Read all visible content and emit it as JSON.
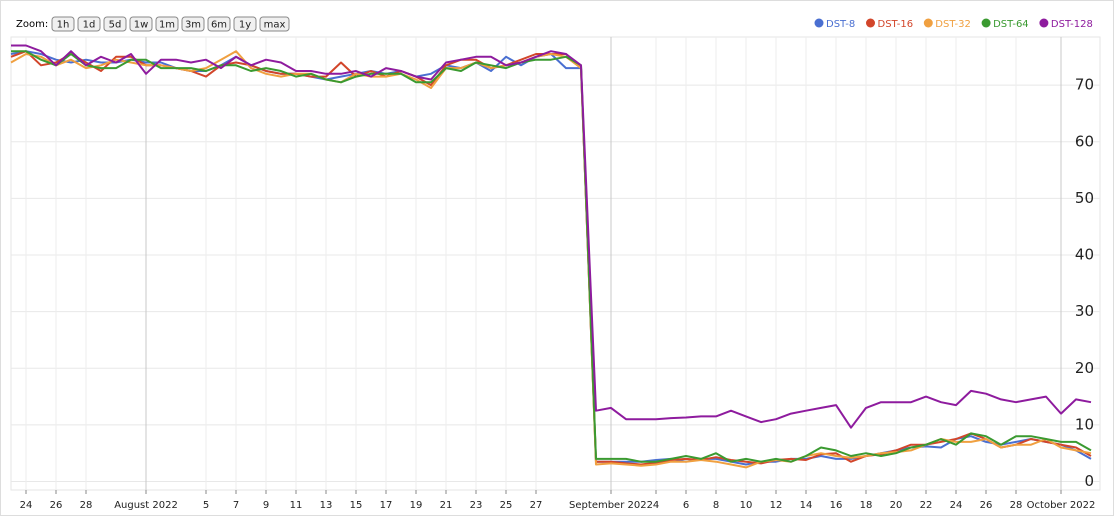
{
  "zoom": {
    "label": "Zoom:",
    "buttons": [
      "1h",
      "1d",
      "5d",
      "1w",
      "1m",
      "3m",
      "6m",
      "1y",
      "max"
    ]
  },
  "chart_data": {
    "type": "line",
    "categories": [
      null,
      "24",
      null,
      "26",
      null,
      "28",
      null,
      null,
      null,
      "August 2022",
      null,
      null,
      null,
      "5",
      null,
      "7",
      null,
      "9",
      null,
      "11",
      null,
      "13",
      null,
      "15",
      null,
      "17",
      null,
      "19",
      null,
      "21",
      null,
      "23",
      null,
      "25",
      null,
      "27",
      null,
      null,
      null,
      null,
      "September 2022",
      null,
      null,
      "4",
      null,
      "6",
      null,
      "8",
      null,
      "10",
      null,
      "12",
      null,
      "14",
      null,
      "16",
      null,
      "18",
      null,
      "20",
      null,
      "22",
      null,
      "24",
      null,
      "26",
      null,
      "28",
      null,
      null,
      "October 2022",
      null,
      null
    ],
    "series": [
      {
        "name": "DST-8",
        "color": "#4a6fd1",
        "values": [
          75.5,
          76,
          75.5,
          74.5,
          74,
          74.5,
          74,
          74,
          74.5,
          74,
          74,
          73,
          72.5,
          72.5,
          73.5,
          75,
          73.5,
          72.5,
          72,
          72,
          71.5,
          71,
          71.5,
          72,
          72.5,
          72,
          72.5,
          71.5,
          72,
          73.5,
          73,
          74,
          72.5,
          75,
          73.5,
          75,
          75.5,
          73,
          73,
          3.5,
          3.5,
          3.5,
          3.5,
          3.8,
          4,
          3.5,
          4,
          4,
          3.5,
          3,
          3.5,
          3.5,
          4,
          4,
          4.5,
          4,
          4,
          4.5,
          5,
          5.5,
          6,
          6.2,
          6,
          7.5,
          8,
          7,
          6.5,
          7,
          7.5,
          7,
          6.5,
          5.5,
          4
        ]
      },
      {
        "name": "DST-16",
        "color": "#d2452a",
        "values": [
          75,
          76,
          73.5,
          74,
          75.5,
          74,
          72.5,
          75,
          75,
          73.5,
          73.5,
          73,
          72.5,
          71.5,
          73.5,
          74,
          73.5,
          72.5,
          72,
          72,
          71.5,
          71.5,
          74,
          71.5,
          72.5,
          71.5,
          72.5,
          71.5,
          70,
          73.5,
          74.5,
          74.5,
          73,
          73.5,
          74.5,
          75.5,
          75.5,
          75.5,
          73,
          3.5,
          3.5,
          3.2,
          3,
          3.3,
          3.8,
          4,
          3.8,
          4.3,
          3.8,
          3.5,
          3.2,
          3.8,
          4,
          3.8,
          4.8,
          5,
          3.5,
          4.5,
          4.8,
          5.5,
          6.5,
          6.5,
          7,
          7.5,
          8.5,
          7.5,
          6,
          6.5,
          7.5,
          7,
          6.5,
          6,
          4.5
        ]
      },
      {
        "name": "DST-32",
        "color": "#f0a040",
        "values": [
          74,
          75.5,
          75,
          73.5,
          74.5,
          73,
          73.5,
          74.5,
          74,
          73.5,
          73.5,
          73,
          72.5,
          73,
          74.5,
          76,
          73,
          72,
          71.5,
          72,
          72,
          71,
          70.5,
          72,
          71.5,
          71.5,
          72,
          71,
          69.5,
          73,
          73,
          74,
          73,
          73.5,
          74,
          75,
          75.5,
          75,
          73,
          3,
          3.2,
          3,
          2.8,
          3,
          3.5,
          3.5,
          3.8,
          3.5,
          3,
          2.5,
          3.5,
          3.8,
          3.5,
          4.5,
          5,
          4.5,
          4.2,
          4.5,
          5,
          5.2,
          5.5,
          6.5,
          7.5,
          7,
          7,
          7.5,
          6,
          6.5,
          6.5,
          7.5,
          6,
          5.5,
          5
        ]
      },
      {
        "name": "DST-64",
        "color": "#3a9a30",
        "values": [
          76,
          76,
          74.5,
          73.5,
          75.5,
          73.5,
          73,
          73,
          74.5,
          74.5,
          73,
          73,
          73,
          72.5,
          73.5,
          73.5,
          72.5,
          73,
          72.5,
          71.5,
          72,
          71,
          70.5,
          71.5,
          72,
          72,
          72,
          70.5,
          70.5,
          73,
          72.5,
          74,
          73.5,
          73,
          74,
          74.5,
          74.5,
          75,
          73.5,
          4,
          4,
          4,
          3.5,
          3.5,
          4,
          4.5,
          4,
          5,
          3.5,
          4,
          3.5,
          4,
          3.5,
          4.5,
          6,
          5.5,
          4.5,
          5,
          4.5,
          5,
          6,
          6.5,
          7.5,
          6.5,
          8.5,
          8,
          6.5,
          8,
          8,
          7.5,
          7,
          7,
          5.5
        ]
      },
      {
        "name": "DST-128",
        "color": "#8e1b9e",
        "values": [
          77,
          77,
          76,
          73.5,
          76,
          73.5,
          75,
          74,
          75.5,
          72,
          74.5,
          74.5,
          74,
          74.5,
          73,
          75,
          73.5,
          74.5,
          74,
          72.5,
          72.5,
          72,
          72,
          72.5,
          71.5,
          73,
          72.5,
          71.5,
          71,
          74,
          74.5,
          75,
          75,
          73.5,
          74,
          75,
          76,
          75.5,
          73.5,
          12.5,
          13,
          11,
          11,
          11,
          11.2,
          11.3,
          11.5,
          11.5,
          12.5,
          11.5,
          10.5,
          11,
          12,
          12.5,
          13,
          13.5,
          9.5,
          13,
          14,
          14,
          14,
          15,
          14,
          13.5,
          16,
          15.5,
          14.5,
          14,
          14.5,
          15,
          12,
          14.5,
          14
        ]
      }
    ],
    "ylim": [
      -1.5,
      78.5
    ],
    "yticks": [
      0,
      10,
      20,
      30,
      40,
      50,
      60,
      70
    ],
    "grid": true,
    "legend": "top-right"
  }
}
